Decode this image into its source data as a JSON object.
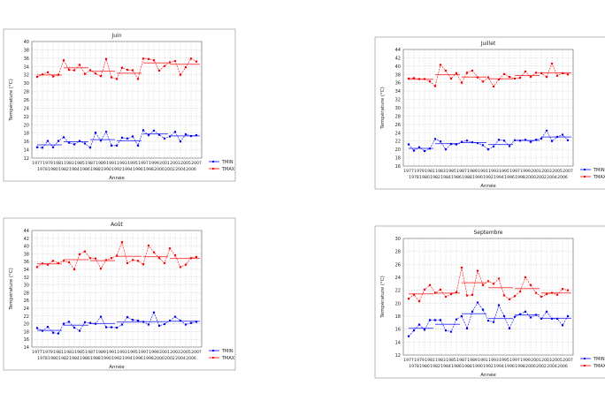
{
  "chart_data": [
    {
      "type": "line",
      "title": "Juin",
      "xlabel": "Année",
      "ylabel": "Température (°C)",
      "ylim": [
        12,
        40
      ],
      "ystep": 2,
      "x": [
        1977,
        1978,
        1979,
        1980,
        1981,
        1982,
        1983,
        1984,
        1985,
        1986,
        1987,
        1988,
        1989,
        1990,
        1991,
        1992,
        1993,
        1994,
        1995,
        1996,
        1997,
        1998,
        1999,
        2000,
        2001,
        2002,
        2003,
        2004,
        2005,
        2006,
        2007
      ],
      "grid": true,
      "legend": "right",
      "series": [
        {
          "name": "TMIN",
          "color": "#0000ff",
          "values": [
            14.6,
            14.5,
            16.1,
            14.6,
            16.1,
            17.0,
            15.7,
            15.3,
            16.1,
            15.5,
            14.5,
            18.1,
            16.2,
            18.3,
            15.0,
            15.0,
            16.9,
            16.7,
            17.2,
            15.0,
            18.7,
            17.5,
            18.6,
            17.6,
            16.7,
            17.2,
            18.3,
            16.0,
            17.7,
            17.3,
            17.5
          ]
        },
        {
          "name": "TMAX",
          "color": "#ff0000",
          "values": [
            31.5,
            32.1,
            32.6,
            31.6,
            32.0,
            35.5,
            33.2,
            33.1,
            34.4,
            32.2,
            33.1,
            32.3,
            31.7,
            35.8,
            31.4,
            31.0,
            33.7,
            33.2,
            33.1,
            31.0,
            35.9,
            35.8,
            35.5,
            33.0,
            34.1,
            35.0,
            35.3,
            32.0,
            33.8,
            35.9,
            35.2
          ]
        }
      ]
    },
    {
      "type": "line",
      "title": "Juillet",
      "xlabel": "Année",
      "ylabel": "Température (°C)",
      "ylim": [
        16,
        44
      ],
      "ystep": 2,
      "x": [
        1977,
        1978,
        1979,
        1980,
        1981,
        1982,
        1983,
        1984,
        1985,
        1986,
        1987,
        1988,
        1989,
        1990,
        1991,
        1992,
        1993,
        1994,
        1995,
        1996,
        1997,
        1998,
        1999,
        2000,
        2001,
        2002,
        2003,
        2004,
        2005,
        2006,
        2007
      ],
      "grid": true,
      "legend": "right",
      "series": [
        {
          "name": "TMIN",
          "color": "#0000ff",
          "values": [
            21.2,
            19.7,
            20.5,
            19.6,
            20.2,
            22.5,
            21.9,
            20.0,
            21.3,
            21.2,
            21.8,
            22.1,
            21.7,
            21.5,
            21.0,
            20.0,
            20.7,
            22.3,
            22.1,
            20.8,
            22.2,
            22.1,
            22.3,
            21.8,
            22.3,
            22.6,
            24.5,
            22.0,
            23.0,
            23.5,
            22.2
          ]
        },
        {
          "name": "TMAX",
          "color": "#ff0000",
          "values": [
            37.0,
            37.1,
            36.9,
            36.9,
            36.3,
            35.2,
            40.3,
            38.9,
            37.0,
            38.3,
            36.0,
            38.4,
            38.9,
            37.3,
            36.3,
            37.3,
            35.1,
            36.8,
            38.1,
            37.4,
            37.0,
            37.2,
            38.7,
            37.4,
            38.4,
            38.3,
            37.4,
            40.6,
            37.7,
            38.3,
            38.0
          ]
        }
      ]
    },
    {
      "type": "line",
      "title": "Août",
      "xlabel": "Année",
      "ylabel": "Température (°C)",
      "ylim": [
        14,
        44
      ],
      "ystep": 2,
      "x": [
        1977,
        1978,
        1979,
        1980,
        1981,
        1982,
        1983,
        1984,
        1985,
        1986,
        1987,
        1988,
        1989,
        1990,
        1991,
        1992,
        1993,
        1994,
        1995,
        1996,
        1997,
        1998,
        1999,
        2000,
        2001,
        2002,
        2003,
        2004,
        2005,
        2006,
        2007
      ],
      "grid": true,
      "legend": "right",
      "series": [
        {
          "name": "TMIN",
          "color": "#0000ff",
          "values": [
            18.9,
            18.2,
            19.2,
            17.7,
            17.5,
            20.0,
            20.5,
            19.0,
            18.2,
            20.4,
            20.2,
            20.0,
            21.8,
            19.1,
            19.1,
            19.0,
            19.8,
            21.7,
            21.0,
            20.8,
            20.5,
            19.8,
            22.9,
            19.5,
            19.9,
            20.8,
            21.8,
            20.8,
            19.8,
            20.2,
            20.5
          ]
        },
        {
          "name": "TMAX",
          "color": "#ff0000",
          "values": [
            34.6,
            35.5,
            35.2,
            36.2,
            35.6,
            36.2,
            35.8,
            34.0,
            37.9,
            38.6,
            36.9,
            36.8,
            34.2,
            36.4,
            36.9,
            37.5,
            41.0,
            35.6,
            36.4,
            36.2,
            35.3,
            40.1,
            38.4,
            36.9,
            35.6,
            39.4,
            37.6,
            34.6,
            35.2,
            36.9,
            37.2
          ]
        }
      ]
    },
    {
      "type": "line",
      "title": "Septembre",
      "xlabel": "Année",
      "ylabel": "Température (°C)",
      "ylim": [
        12,
        30
      ],
      "ystep": 2,
      "x": [
        1977,
        1978,
        1979,
        1980,
        1981,
        1982,
        1983,
        1984,
        1985,
        1986,
        1987,
        1988,
        1989,
        1990,
        1991,
        1992,
        1993,
        1994,
        1995,
        1996,
        1997,
        1998,
        1999,
        2000,
        2001,
        2002,
        2003,
        2004,
        2005,
        2006,
        2007
      ],
      "grid": true,
      "legend": "right",
      "series": [
        {
          "name": "TMIN",
          "color": "#0000ff",
          "values": [
            14.9,
            15.8,
            16.7,
            15.9,
            17.4,
            17.4,
            17.4,
            15.8,
            15.6,
            17.5,
            18.0,
            16.1,
            18.7,
            20.1,
            19.0,
            17.3,
            17.1,
            19.7,
            18.0,
            16.1,
            17.9,
            18.3,
            18.7,
            17.8,
            18.2,
            17.6,
            18.7,
            17.6,
            17.6,
            16.6,
            18.0
          ]
        },
        {
          "name": "TMAX",
          "color": "#ff0000",
          "values": [
            20.7,
            21.3,
            20.3,
            22.1,
            22.8,
            21.6,
            22.1,
            21.0,
            21.4,
            21.7,
            25.5,
            21.2,
            21.3,
            25.0,
            22.8,
            23.4,
            23.0,
            23.8,
            21.2,
            20.6,
            21.1,
            21.8,
            24.0,
            22.8,
            21.6,
            21.0,
            21.4,
            21.6,
            21.3,
            22.2,
            22.0
          ]
        }
      ]
    }
  ]
}
